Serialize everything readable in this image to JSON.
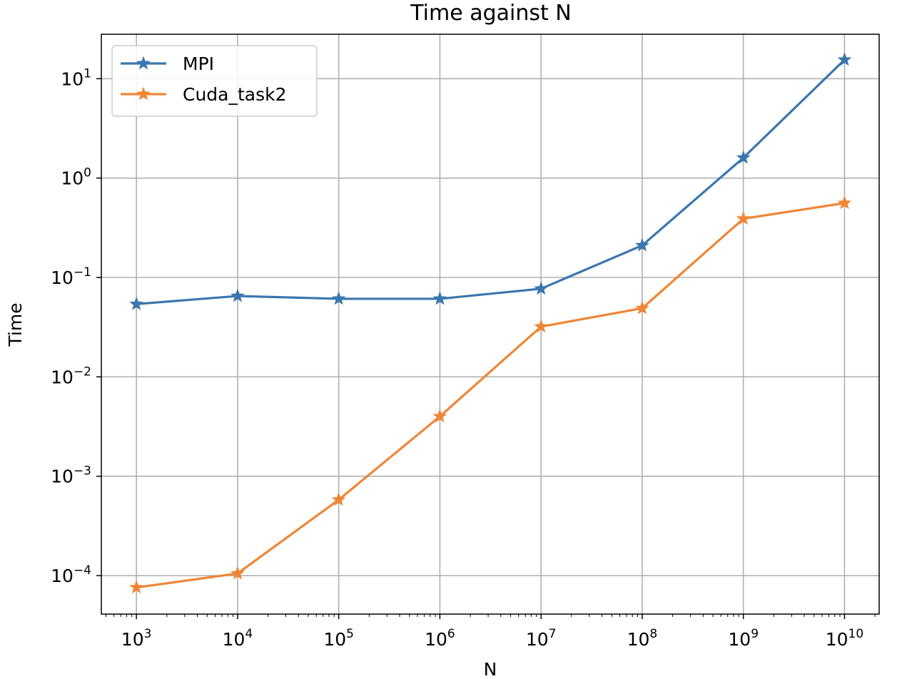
{
  "chart_data": {
    "type": "line",
    "title": "Time against N",
    "xlabel": "N",
    "ylabel": "Time",
    "xscale": "log",
    "yscale": "log",
    "xlim": [
      450,
      22000000000
    ],
    "ylim": [
      4.1e-05,
      28
    ],
    "grid": true,
    "legend_position": "top-left",
    "marker": "star",
    "x": [
      1000,
      10000,
      100000,
      1000000,
      10000000,
      100000000,
      1000000000,
      10000000000
    ],
    "x_tick_labels": [
      {
        "base": "10",
        "exp": "3"
      },
      {
        "base": "10",
        "exp": "4"
      },
      {
        "base": "10",
        "exp": "5"
      },
      {
        "base": "10",
        "exp": "6"
      },
      {
        "base": "10",
        "exp": "7"
      },
      {
        "base": "10",
        "exp": "8"
      },
      {
        "base": "10",
        "exp": "9"
      },
      {
        "base": "10",
        "exp": "10"
      }
    ],
    "y_ticks": [
      0.0001,
      0.001,
      0.01,
      0.1,
      1,
      10
    ],
    "y_tick_labels": [
      {
        "base": "10",
        "exp": "−4"
      },
      {
        "base": "10",
        "exp": "−3"
      },
      {
        "base": "10",
        "exp": "−2"
      },
      {
        "base": "10",
        "exp": "−1"
      },
      {
        "base": "10",
        "exp": "0"
      },
      {
        "base": "10",
        "exp": "1"
      }
    ],
    "series": [
      {
        "name": "MPI",
        "color": "#3a76af",
        "values": [
          0.054,
          0.065,
          0.061,
          0.061,
          0.077,
          0.21,
          1.6,
          15.5
        ]
      },
      {
        "name": "Cuda_task2",
        "color": "#ef8636",
        "values": [
          7.6e-05,
          0.000105,
          0.00058,
          0.004,
          0.032,
          0.049,
          0.39,
          0.56
        ]
      }
    ]
  }
}
